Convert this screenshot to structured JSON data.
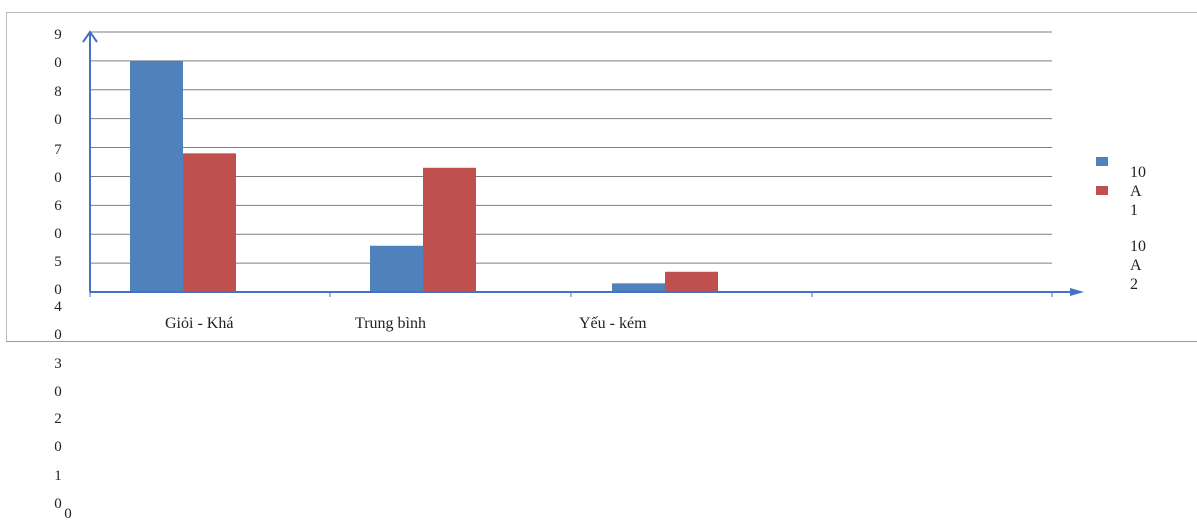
{
  "chart_data": {
    "type": "bar",
    "categories": [
      "Giỏi - Khá",
      "Trung bình",
      "Yếu - kém"
    ],
    "series": [
      {
        "name": "10A1",
        "values": [
          80,
          16,
          3
        ],
        "color": "#4f81bd"
      },
      {
        "name": "10A2",
        "values": [
          48,
          43,
          7
        ],
        "color": "#c0504d"
      }
    ],
    "ylim": [
      0,
      90
    ],
    "yticks": [
      "0",
      "10",
      "20",
      "30",
      "40",
      "50",
      "60",
      "70",
      "80",
      "90"
    ],
    "grid": true,
    "legend_position": "right",
    "legend_labels": [
      "10\nA\n1",
      "10\nA\n2"
    ],
    "title": "",
    "xlabel": "",
    "ylabel": ""
  }
}
